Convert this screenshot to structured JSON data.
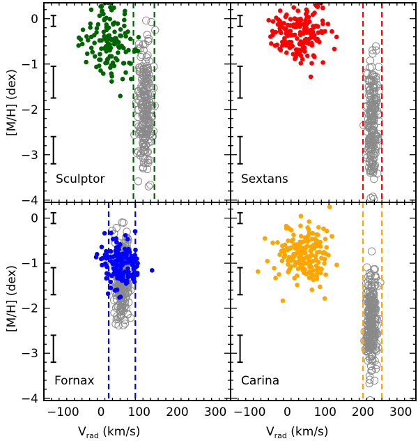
{
  "chart_data": {
    "type": "scatter",
    "shared_axes": {
      "xlabel_main": "V",
      "xlabel_sub": "rad",
      "xlabel_units": " (km/s)",
      "ylabel": "[M/H] (dex)",
      "xlim": [
        -150,
        340
      ],
      "ylim": [
        -4.05,
        0.35
      ],
      "xticks": [
        -100,
        0,
        100,
        200,
        300
      ],
      "yticks": [
        0,
        -1,
        -2,
        -3,
        -4
      ],
      "xtick_labels": [
        "−100",
        "0",
        "100",
        "200",
        "300"
      ],
      "ytick_labels": [
        "0",
        "−1",
        "−2",
        "−3",
        "−4"
      ]
    },
    "panels": [
      {
        "name": "Sculptor",
        "color": "#006400",
        "vlines": [
          85,
          140
        ],
        "error_bars": [
          {
            "x": -125,
            "y": -0.05,
            "err": 0.12
          },
          {
            "x": -125,
            "y": -1.4,
            "err": 0.35
          },
          {
            "x": -125,
            "y": -2.9,
            "err": 0.3
          }
        ],
        "members_center": [
          20,
          -0.55
        ],
        "members_spread": [
          30,
          0.45
        ],
        "members_count": 130,
        "foreground_center": [
          115,
          -1.95
        ],
        "foreground_spread": [
          10,
          0.7
        ],
        "foreground_count": 230
      },
      {
        "name": "Sextans",
        "color": "#ff0000",
        "vlines": [
          200,
          250
        ],
        "error_bars": [
          {
            "x": -125,
            "y": -0.05,
            "err": 0.12
          },
          {
            "x": -125,
            "y": -1.4,
            "err": 0.35
          },
          {
            "x": -125,
            "y": -2.9,
            "err": 0.3
          }
        ],
        "members_center": [
          35,
          -0.35
        ],
        "members_spread": [
          35,
          0.3
        ],
        "members_count": 170,
        "foreground_center": [
          225,
          -2.3
        ],
        "foreground_spread": [
          8,
          0.65
        ],
        "foreground_count": 200
      },
      {
        "name": "Fornax",
        "color": "#0000ff",
        "vlines": [
          20,
          90
        ],
        "error_bars": [
          {
            "x": -125,
            "y": 0.0,
            "err": 0.12
          },
          {
            "x": -125,
            "y": -1.4,
            "err": 0.3
          },
          {
            "x": -125,
            "y": -2.9,
            "err": 0.3
          }
        ],
        "members_center": [
          50,
          -1.0
        ],
        "members_spread": [
          25,
          0.3
        ],
        "members_count": 150,
        "foreground_center": [
          55,
          -1.3
        ],
        "foreground_spread": [
          10,
          0.5
        ],
        "foreground_count": 260
      },
      {
        "name": "Carina",
        "color": "#ffa500",
        "vlines": [
          200,
          250
        ],
        "error_bars": [
          {
            "x": -125,
            "y": 0.0,
            "err": 0.12
          },
          {
            "x": -125,
            "y": -1.4,
            "err": 0.3
          },
          {
            "x": -125,
            "y": -2.9,
            "err": 0.3
          }
        ],
        "members_center": [
          40,
          -0.75
        ],
        "members_spread": [
          35,
          0.35
        ],
        "members_count": 180,
        "foreground_center": [
          222,
          -2.3
        ],
        "foreground_spread": [
          8,
          0.55
        ],
        "foreground_count": 240
      }
    ]
  }
}
